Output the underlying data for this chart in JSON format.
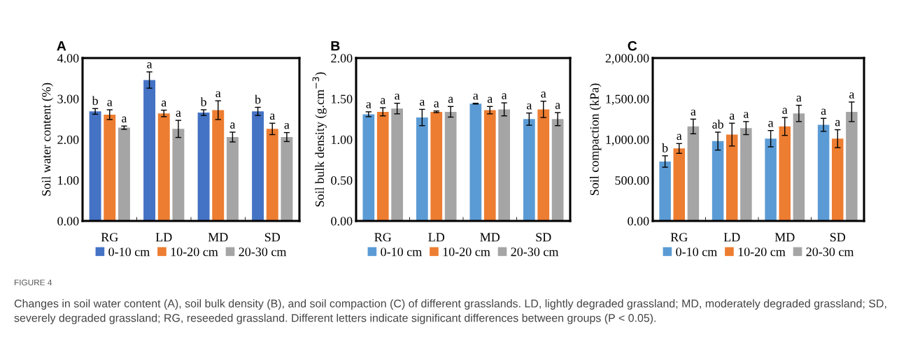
{
  "chart_data": [
    {
      "type": "bar",
      "title": "A",
      "ylabel": "Soil water content (%)",
      "categories": [
        "RG",
        "LD",
        "MD",
        "SD"
      ],
      "series": [
        {
          "name": "0-10 cm",
          "color": "#4472c4",
          "values": [
            2.69,
            3.46,
            2.66,
            2.69
          ],
          "errors": [
            0.07,
            0.2,
            0.07,
            0.1
          ]
        },
        {
          "name": "10-20 cm",
          "color": "#ed7d31",
          "values": [
            2.61,
            2.64,
            2.72,
            2.26
          ],
          "errors": [
            0.12,
            0.08,
            0.23,
            0.14
          ]
        },
        {
          "name": "20-30 cm",
          "color": "#a5a5a5",
          "values": [
            2.29,
            2.26,
            2.06,
            2.06
          ],
          "errors": [
            0.04,
            0.21,
            0.12,
            0.11
          ]
        }
      ],
      "ylim": [
        0,
        4
      ],
      "yticks": [
        {
          "value": 0,
          "label": "0.00"
        },
        {
          "value": 1,
          "label": "1.00"
        },
        {
          "value": 2,
          "label": "2.00"
        },
        {
          "value": 3,
          "label": "3.00"
        },
        {
          "value": 4,
          "label": "4.00"
        }
      ],
      "legend": "bottom",
      "grid": false,
      "annotations": [
        "b",
        "a",
        "a",
        "a",
        "a",
        "a",
        "b",
        "a",
        "a",
        "b",
        "a",
        "a",
        "FIGURE 4",
        "Changes in soil water content (A), soil bulk density (B), and soil compaction (C) of different grasslands. LD, lightly degraded grassland; MD, moderately degraded grassland; SD, severely degraded grassland; RG, reseeded grassland. Different letters indicate significant differences between groups (P < 0.05)."
      ]
    },
    {
      "type": "bar",
      "title": "B",
      "ylabel": "Soil bulk density (g.cm$^{−3}$)",
      "categories": [
        "RG",
        "LD",
        "MD",
        "SD"
      ],
      "series": [
        {
          "name": "0-10 cm",
          "color": "#5b9bd5",
          "values": [
            1.31,
            1.27,
            1.44,
            1.25
          ],
          "errors": [
            0.03,
            0.1,
            0.005,
            0.075
          ]
        },
        {
          "name": "10-20 cm",
          "color": "#ed7d31",
          "values": [
            1.34,
            1.34,
            1.36,
            1.37
          ],
          "errors": [
            0.05,
            0.01,
            0.045,
            0.1
          ]
        },
        {
          "name": "20-30 cm",
          "color": "#a5a5a5",
          "values": [
            1.38,
            1.34,
            1.37,
            1.25
          ],
          "errors": [
            0.065,
            0.065,
            0.08,
            0.08
          ]
        }
      ],
      "ylim": [
        0,
        2
      ],
      "yticks": [
        {
          "value": 0,
          "label": "0.00"
        },
        {
          "value": 0.5,
          "label": "0.50"
        },
        {
          "value": 1,
          "label": "1.00"
        },
        {
          "value": 1.5,
          "label": "1.50"
        },
        {
          "value": 2,
          "label": "2.00"
        }
      ],
      "legend": "bottom",
      "grid": false,
      "annotations": [
        "a",
        "a",
        "a",
        "a",
        "a",
        "a",
        "a",
        "a",
        "a",
        "a",
        "a",
        "a"
      ]
    },
    {
      "type": "bar",
      "title": "C",
      "ylabel": "Soil compaction (kPa)",
      "categories": [
        "RG",
        "LD",
        "MD",
        "SD"
      ],
      "series": [
        {
          "name": "0-10 cm",
          "color": "#5b9bd5",
          "values": [
            730,
            980,
            1010,
            1180
          ],
          "errors": [
            70,
            110,
            100,
            80
          ]
        },
        {
          "name": "10-20 cm",
          "color": "#ed7d31",
          "values": [
            890,
            1060,
            1160,
            1010
          ],
          "errors": [
            60,
            140,
            110,
            110
          ]
        },
        {
          "name": "20-30 cm",
          "color": "#a5a5a5",
          "values": [
            1160,
            1140,
            1320,
            1340
          ],
          "errors": [
            90,
            80,
            100,
            120
          ]
        }
      ],
      "ylim": [
        0,
        2000
      ],
      "yticks": [
        {
          "value": 0,
          "label": "0.00"
        },
        {
          "value": 500,
          "label": "500.00"
        },
        {
          "value": 1000,
          "label": "1,000.00"
        },
        {
          "value": 1500,
          "label": "1,500.00"
        },
        {
          "value": 2000,
          "label": "2,000.00"
        }
      ],
      "legend": "bottom",
      "grid": false,
      "annotations": [
        "b",
        "a",
        "a",
        "ab",
        "a",
        "a",
        "a",
        "a",
        "a",
        "a",
        "a",
        "a"
      ]
    }
  ]
}
